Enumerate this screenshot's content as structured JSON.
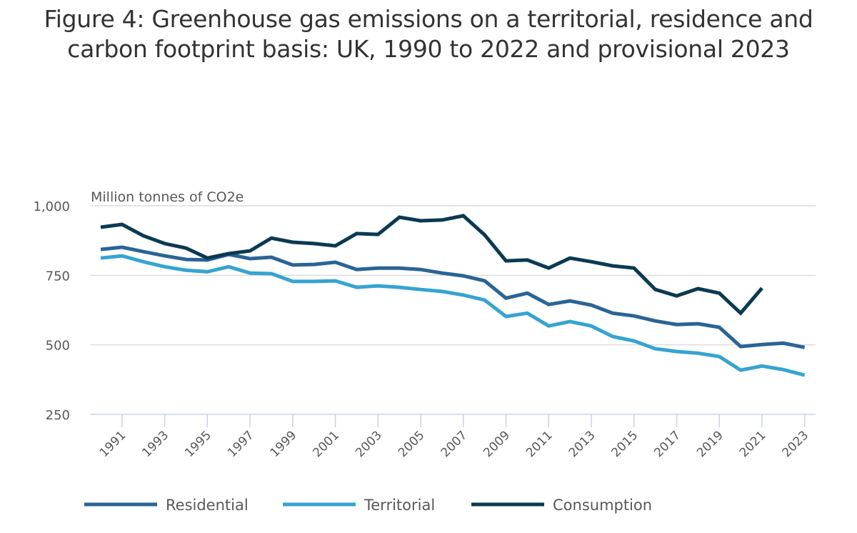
{
  "chart_data": {
    "type": "line",
    "title": "Figure 4: Greenhouse gas emissions on a territorial, residence and carbon footprint basis: UK, 1990 to 2022 and provisional 2023",
    "ylabel": "Million tonnes of CO2e",
    "xlabel": "",
    "ylim": [
      250,
      1000
    ],
    "yticks": [
      250,
      500,
      750,
      1000
    ],
    "ytick_labels": [
      "250",
      "500",
      "750",
      "1,000"
    ],
    "x": [
      1990,
      1991,
      1992,
      1993,
      1994,
      1995,
      1996,
      1997,
      1998,
      1999,
      2000,
      2001,
      2002,
      2003,
      2004,
      2005,
      2006,
      2007,
      2008,
      2009,
      2010,
      2011,
      2012,
      2013,
      2014,
      2015,
      2016,
      2017,
      2018,
      2019,
      2020,
      2021,
      2022,
      2023
    ],
    "xticks": [
      1991,
      1993,
      1995,
      1997,
      1999,
      2001,
      2003,
      2005,
      2007,
      2009,
      2011,
      2013,
      2015,
      2017,
      2019,
      2021,
      2023
    ],
    "xtick_labels": [
      "1991",
      "1993",
      "1995",
      "1997",
      "1999",
      "2001",
      "2003",
      "2005",
      "2007",
      "2009",
      "2011",
      "2013",
      "2015",
      "2017",
      "2019",
      "2021",
      "2023"
    ],
    "grid": "horizontal",
    "legend_position": "bottom",
    "series": [
      {
        "name": "Residential",
        "color": "#2a6496",
        "values": [
          843,
          851,
          835,
          820,
          807,
          805,
          825,
          810,
          815,
          787,
          789,
          797,
          771,
          776,
          776,
          771,
          758,
          748,
          730,
          668,
          686,
          645,
          658,
          643,
          614,
          604,
          586,
          573,
          576,
          563,
          494,
          501,
          506,
          491
        ]
      },
      {
        "name": "Territorial",
        "color": "#35a4d1",
        "values": [
          812,
          820,
          799,
          781,
          768,
          763,
          781,
          758,
          756,
          728,
          728,
          730,
          707,
          712,
          707,
          699,
          692,
          679,
          661,
          602,
          614,
          568,
          584,
          568,
          530,
          514,
          486,
          476,
          470,
          458,
          409,
          424,
          411,
          391
        ]
      },
      {
        "name": "Consumption",
        "color": "#0b3a52",
        "values": [
          923,
          933,
          892,
          864,
          848,
          812,
          828,
          838,
          884,
          869,
          864,
          856,
          900,
          897,
          959,
          946,
          949,
          964,
          895,
          802,
          805,
          776,
          812,
          799,
          784,
          776,
          699,
          676,
          702,
          686,
          614,
          704,
          null,
          null
        ]
      }
    ]
  },
  "colors": {
    "grid": "#dcdcdc",
    "axis": "#c8d4e3",
    "text": "#595959"
  }
}
